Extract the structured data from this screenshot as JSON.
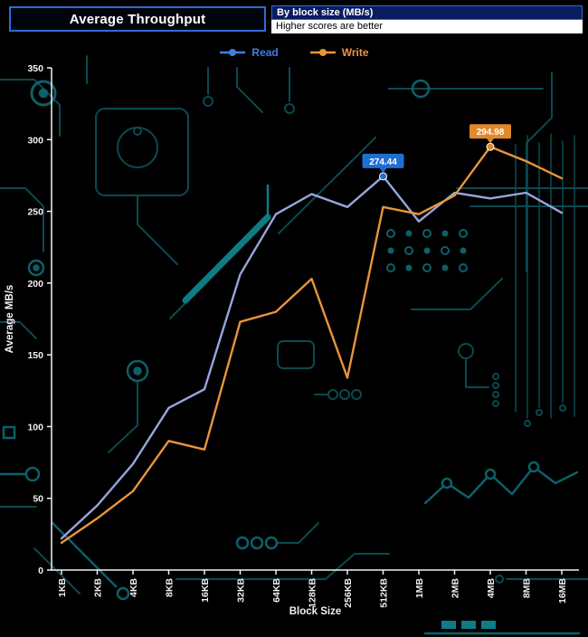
{
  "chart_data": {
    "type": "line",
    "title": "Average Throughput",
    "subtitle": "By block size (MB/s)",
    "note": "Higher scores are better",
    "xlabel": "Block Size",
    "ylabel": "Average MB/s",
    "ylim": [
      0,
      350
    ],
    "ytick_step": 50,
    "grid": false,
    "legend_position": "top",
    "axis_color": "#f2f2f2",
    "categories": [
      "1KB",
      "2KB",
      "4KB",
      "8KB",
      "16KB",
      "32KB",
      "64KB",
      "128KB",
      "256KB",
      "512KB",
      "1MB",
      "2MB",
      "4MB",
      "8MB",
      "16MB"
    ],
    "series": [
      {
        "name": "Read",
        "color": "#97a6de",
        "legend_color": "#3f7fe0",
        "values": [
          22,
          45,
          74,
          113,
          126,
          206,
          248,
          262,
          253,
          274.44,
          243,
          263,
          259,
          263,
          249
        ]
      },
      {
        "name": "Write",
        "color": "#e8953c",
        "legend_color": "#e8953c",
        "values": [
          19,
          36,
          55,
          90,
          84,
          173,
          180,
          203,
          134,
          253,
          248,
          261,
          294.98,
          285,
          273
        ]
      }
    ],
    "annotations": [
      {
        "series": 0,
        "index": 9,
        "text": "274.44",
        "bg": "#1e6fd2"
      },
      {
        "series": 1,
        "index": 12,
        "text": "294.98",
        "bg": "#e0882a"
      }
    ]
  },
  "colors": {
    "background": "#000000",
    "header_border": "#2e6cd4",
    "subtitle_bg": "#0a1c5e",
    "circuit_dim": "#0a4a50",
    "circuit_mid": "#0d6069",
    "circuit_bright": "#0f7b85"
  }
}
